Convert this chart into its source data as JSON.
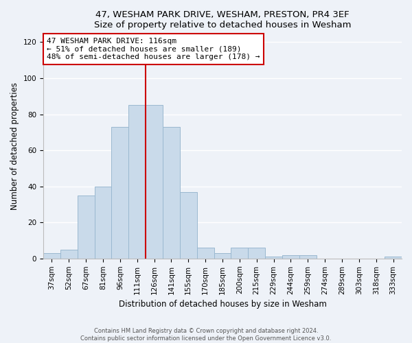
{
  "title1": "47, WESHAM PARK DRIVE, WESHAM, PRESTON, PR4 3EF",
  "title2": "Size of property relative to detached houses in Wesham",
  "xlabel": "Distribution of detached houses by size in Wesham",
  "ylabel": "Number of detached properties",
  "bar_labels": [
    "37sqm",
    "52sqm",
    "67sqm",
    "81sqm",
    "96sqm",
    "111sqm",
    "126sqm",
    "141sqm",
    "155sqm",
    "170sqm",
    "185sqm",
    "200sqm",
    "215sqm",
    "229sqm",
    "244sqm",
    "259sqm",
    "274sqm",
    "289sqm",
    "303sqm",
    "318sqm",
    "333sqm"
  ],
  "bar_values": [
    3,
    5,
    35,
    40,
    73,
    85,
    85,
    73,
    37,
    6,
    3,
    6,
    6,
    1,
    2,
    2,
    0,
    0,
    0,
    0,
    1
  ],
  "bar_color": "#c9daea",
  "bar_edge_color": "#9ab8d0",
  "vline_color": "#cc0000",
  "vline_x_index": 5,
  "annotation_line1": "47 WESHAM PARK DRIVE: 116sqm",
  "annotation_line2": "← 51% of detached houses are smaller (189)",
  "annotation_line3": "48% of semi-detached houses are larger (178) →",
  "annotation_box_color": "#ffffff",
  "annotation_box_edge_color": "#cc0000",
  "ylim": [
    0,
    125
  ],
  "yticks": [
    0,
    20,
    40,
    60,
    80,
    100,
    120
  ],
  "footer1": "Contains HM Land Registry data © Crown copyright and database right 2024.",
  "footer2": "Contains public sector information licensed under the Open Government Licence v3.0.",
  "background_color": "#eef2f8",
  "grid_color": "#ffffff",
  "title_fontsize": 9.5,
  "axis_label_fontsize": 8.5,
  "tick_fontsize": 7.5
}
